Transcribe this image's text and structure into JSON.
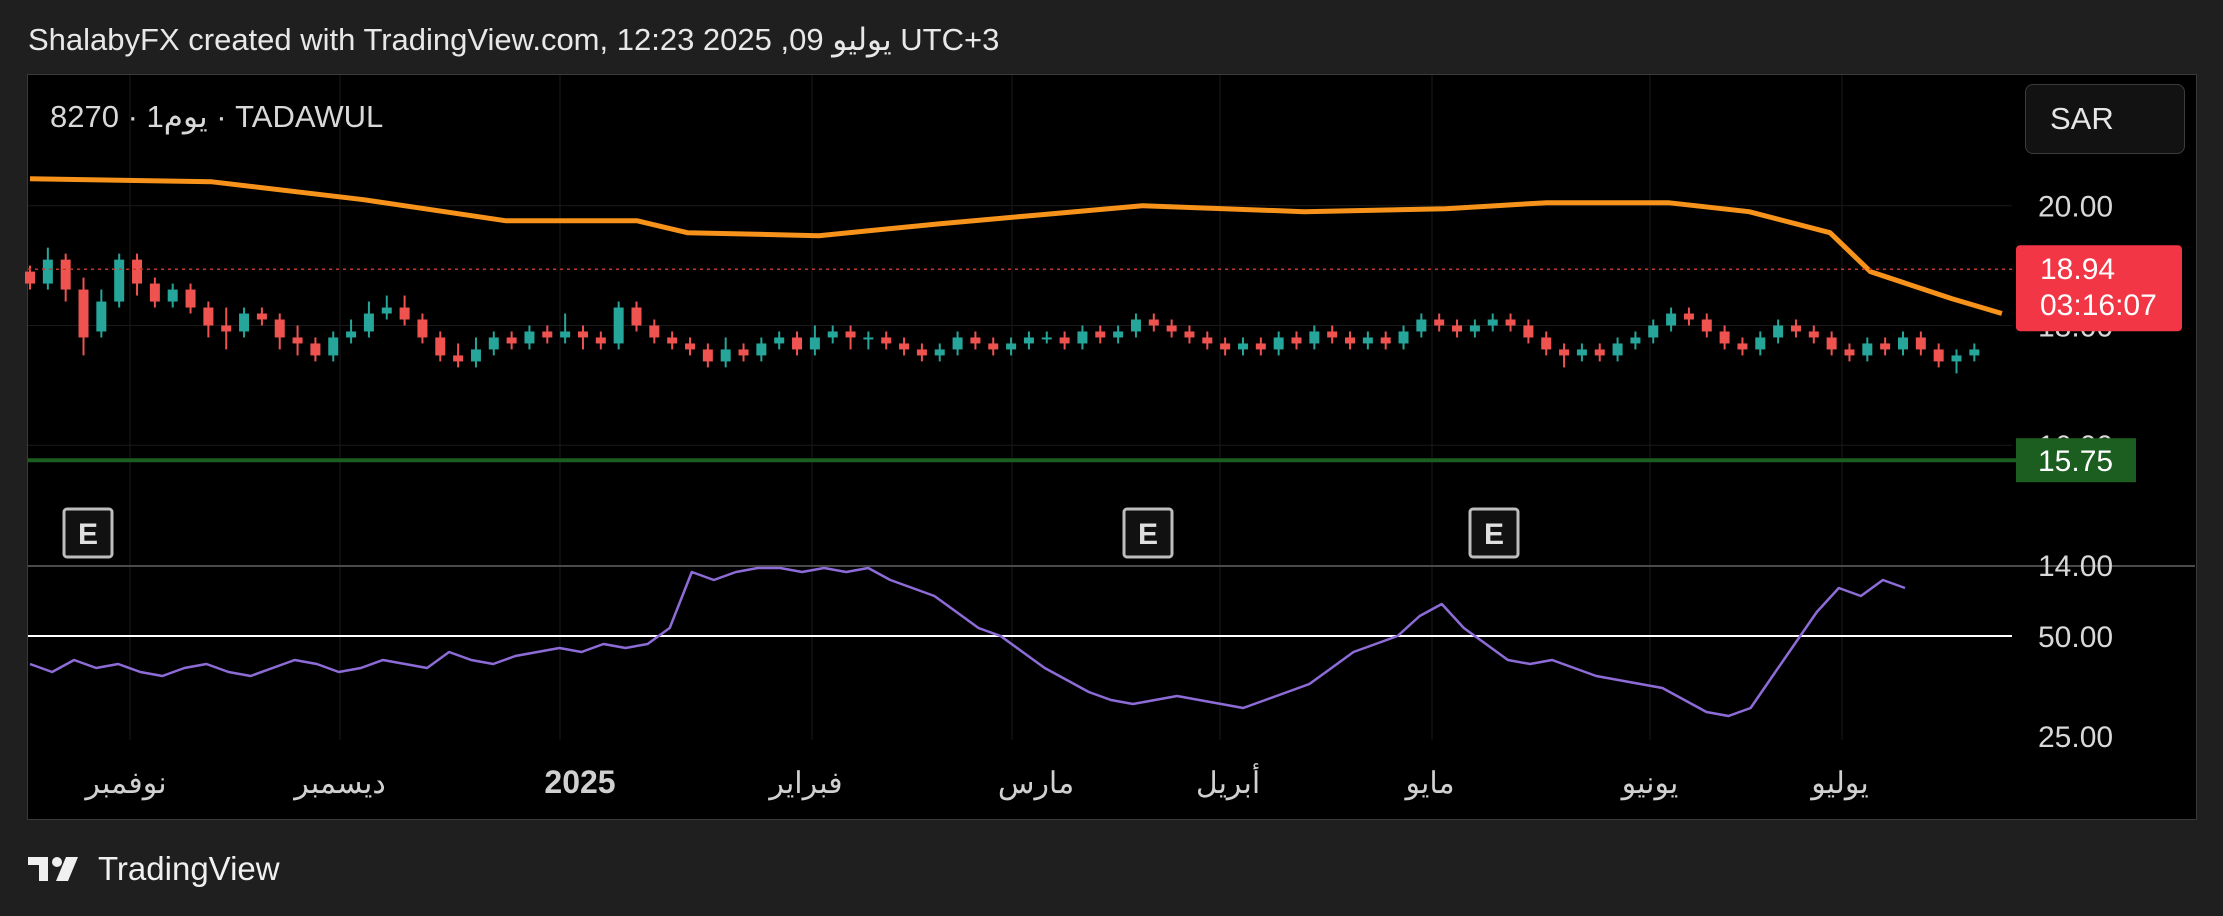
{
  "header": {
    "caption": "ShalabyFX created with TradingView.com, 12:23 2025 ,09 يوليو UTC+3"
  },
  "symbol": {
    "line": "8270 · 1يوم · TADAWUL"
  },
  "currency_button": {
    "label": "SAR"
  },
  "footer": {
    "brand": "TradingView"
  },
  "chart_data": [
    {
      "type": "candlestick",
      "title": "8270 · 1يوم · TADAWUL",
      "currency": "SAR",
      "ylim": [
        14.0,
        22.2
      ],
      "y_tick_labels": [
        "20.00",
        "18.00",
        "16.00",
        "14.00"
      ],
      "x_tick_labels": [
        "نوفمبر",
        "ديسمبر",
        "2025",
        "فبراير",
        "مارس",
        "أبريل",
        "مايو",
        "يونيو",
        "يوليو"
      ],
      "last_price": {
        "value": "18.94",
        "countdown": "03:16:07",
        "color": "#f23645"
      },
      "horizontal_line": {
        "value": "15.75",
        "color": "#1b5e20"
      },
      "moving_average": {
        "color": "#f7931a",
        "points": [
          [
            0,
            20.45
          ],
          [
            180,
            20.4
          ],
          [
            330,
            20.1
          ],
          [
            470,
            19.75
          ],
          [
            600,
            19.75
          ],
          [
            650,
            19.55
          ],
          [
            780,
            19.5
          ],
          [
            900,
            19.7
          ],
          [
            1000,
            19.85
          ],
          [
            1100,
            20.0
          ],
          [
            1260,
            19.9
          ],
          [
            1400,
            19.95
          ],
          [
            1500,
            20.05
          ],
          [
            1620,
            20.05
          ],
          [
            1700,
            19.9
          ],
          [
            1780,
            19.55
          ],
          [
            1820,
            18.9
          ],
          [
            1900,
            18.45
          ],
          [
            1950,
            18.2
          ]
        ]
      },
      "candles": [
        [
          0,
          18.9,
          18.7,
          19.0,
          18.6
        ],
        [
          12,
          18.7,
          19.1,
          19.3,
          18.6
        ],
        [
          24,
          19.1,
          18.6,
          19.2,
          18.4
        ],
        [
          36,
          18.6,
          17.8,
          18.8,
          17.5
        ],
        [
          48,
          17.9,
          18.4,
          18.6,
          17.8
        ],
        [
          60,
          18.4,
          19.1,
          19.2,
          18.3
        ],
        [
          72,
          19.1,
          18.7,
          19.2,
          18.5
        ],
        [
          84,
          18.7,
          18.4,
          18.8,
          18.3
        ],
        [
          96,
          18.4,
          18.6,
          18.7,
          18.3
        ],
        [
          108,
          18.6,
          18.3,
          18.7,
          18.2
        ],
        [
          120,
          18.3,
          18.0,
          18.4,
          17.8
        ],
        [
          132,
          18.0,
          17.9,
          18.3,
          17.6
        ],
        [
          144,
          17.9,
          18.2,
          18.3,
          17.8
        ],
        [
          156,
          18.2,
          18.1,
          18.3,
          18.0
        ],
        [
          168,
          18.1,
          17.8,
          18.2,
          17.6
        ],
        [
          180,
          17.8,
          17.7,
          18.0,
          17.5
        ],
        [
          192,
          17.7,
          17.5,
          17.8,
          17.4
        ],
        [
          204,
          17.5,
          17.8,
          17.9,
          17.4
        ],
        [
          216,
          17.8,
          17.9,
          18.1,
          17.7
        ],
        [
          228,
          17.9,
          18.2,
          18.4,
          17.8
        ],
        [
          240,
          18.2,
          18.3,
          18.5,
          18.1
        ],
        [
          252,
          18.3,
          18.1,
          18.5,
          18.0
        ],
        [
          264,
          18.1,
          17.8,
          18.2,
          17.7
        ],
        [
          276,
          17.8,
          17.5,
          17.9,
          17.4
        ],
        [
          288,
          17.5,
          17.4,
          17.7,
          17.3
        ],
        [
          300,
          17.4,
          17.6,
          17.8,
          17.3
        ],
        [
          312,
          17.6,
          17.8,
          17.9,
          17.5
        ],
        [
          324,
          17.8,
          17.7,
          17.9,
          17.6
        ],
        [
          336,
          17.7,
          17.9,
          18.0,
          17.6
        ],
        [
          348,
          17.9,
          17.8,
          18.0,
          17.7
        ],
        [
          360,
          17.8,
          17.9,
          18.2,
          17.7
        ],
        [
          372,
          17.9,
          17.8,
          18.0,
          17.6
        ],
        [
          384,
          17.8,
          17.7,
          17.9,
          17.6
        ],
        [
          396,
          17.7,
          18.3,
          18.4,
          17.6
        ],
        [
          408,
          18.3,
          18.0,
          18.4,
          17.9
        ],
        [
          420,
          18.0,
          17.8,
          18.1,
          17.7
        ],
        [
          432,
          17.8,
          17.7,
          17.9,
          17.6
        ],
        [
          444,
          17.7,
          17.6,
          17.8,
          17.5
        ],
        [
          456,
          17.6,
          17.4,
          17.7,
          17.3
        ],
        [
          468,
          17.4,
          17.6,
          17.8,
          17.3
        ],
        [
          480,
          17.6,
          17.5,
          17.7,
          17.4
        ],
        [
          492,
          17.5,
          17.7,
          17.8,
          17.4
        ],
        [
          504,
          17.7,
          17.8,
          17.9,
          17.6
        ],
        [
          516,
          17.8,
          17.6,
          17.9,
          17.5
        ],
        [
          528,
          17.6,
          17.8,
          18.0,
          17.5
        ],
        [
          540,
          17.8,
          17.9,
          18.0,
          17.7
        ],
        [
          552,
          17.9,
          17.8,
          18.0,
          17.6
        ],
        [
          564,
          17.8,
          17.8,
          17.9,
          17.6
        ],
        [
          576,
          17.8,
          17.7,
          17.9,
          17.6
        ],
        [
          588,
          17.7,
          17.6,
          17.8,
          17.5
        ],
        [
          600,
          17.6,
          17.5,
          17.7,
          17.4
        ],
        [
          612,
          17.5,
          17.6,
          17.7,
          17.4
        ],
        [
          624,
          17.6,
          17.8,
          17.9,
          17.5
        ],
        [
          636,
          17.8,
          17.7,
          17.9,
          17.6
        ],
        [
          648,
          17.7,
          17.6,
          17.8,
          17.5
        ],
        [
          660,
          17.6,
          17.7,
          17.8,
          17.5
        ],
        [
          672,
          17.7,
          17.8,
          17.9,
          17.6
        ],
        [
          684,
          17.8,
          17.8,
          17.9,
          17.7
        ],
        [
          696,
          17.8,
          17.7,
          17.9,
          17.6
        ],
        [
          708,
          17.7,
          17.9,
          18.0,
          17.6
        ],
        [
          720,
          17.9,
          17.8,
          18.0,
          17.7
        ],
        [
          732,
          17.8,
          17.9,
          18.0,
          17.7
        ],
        [
          744,
          17.9,
          18.1,
          18.2,
          17.8
        ],
        [
          756,
          18.1,
          18.0,
          18.2,
          17.9
        ],
        [
          768,
          18.0,
          17.9,
          18.1,
          17.8
        ],
        [
          780,
          17.9,
          17.8,
          18.0,
          17.7
        ],
        [
          792,
          17.8,
          17.7,
          17.9,
          17.6
        ],
        [
          804,
          17.7,
          17.6,
          17.8,
          17.5
        ],
        [
          816,
          17.6,
          17.7,
          17.8,
          17.5
        ],
        [
          828,
          17.7,
          17.6,
          17.8,
          17.5
        ],
        [
          840,
          17.6,
          17.8,
          17.9,
          17.5
        ],
        [
          852,
          17.8,
          17.7,
          17.9,
          17.6
        ],
        [
          864,
          17.7,
          17.9,
          18.0,
          17.6
        ],
        [
          876,
          17.9,
          17.8,
          18.0,
          17.7
        ],
        [
          888,
          17.8,
          17.7,
          17.9,
          17.6
        ],
        [
          900,
          17.7,
          17.8,
          17.9,
          17.6
        ],
        [
          912,
          17.8,
          17.7,
          17.9,
          17.6
        ],
        [
          924,
          17.7,
          17.9,
          18.0,
          17.6
        ],
        [
          936,
          17.9,
          18.1,
          18.2,
          17.8
        ],
        [
          948,
          18.1,
          18.0,
          18.2,
          17.9
        ],
        [
          960,
          18.0,
          17.9,
          18.1,
          17.8
        ],
        [
          972,
          17.9,
          18.0,
          18.1,
          17.8
        ],
        [
          984,
          18.0,
          18.1,
          18.2,
          17.9
        ],
        [
          996,
          18.1,
          18.0,
          18.2,
          17.9
        ],
        [
          1008,
          18.0,
          17.8,
          18.1,
          17.7
        ],
        [
          1020,
          17.8,
          17.6,
          17.9,
          17.5
        ],
        [
          1032,
          17.6,
          17.5,
          17.7,
          17.3
        ],
        [
          1044,
          17.5,
          17.6,
          17.7,
          17.4
        ],
        [
          1056,
          17.6,
          17.5,
          17.7,
          17.4
        ],
        [
          1068,
          17.5,
          17.7,
          17.8,
          17.4
        ],
        [
          1080,
          17.7,
          17.8,
          17.9,
          17.6
        ],
        [
          1092,
          17.8,
          18.0,
          18.1,
          17.7
        ],
        [
          1104,
          18.0,
          18.2,
          18.3,
          17.9
        ],
        [
          1116,
          18.2,
          18.1,
          18.3,
          18.0
        ],
        [
          1128,
          18.1,
          17.9,
          18.2,
          17.8
        ],
        [
          1140,
          17.9,
          17.7,
          18.0,
          17.6
        ],
        [
          1152,
          17.7,
          17.6,
          17.8,
          17.5
        ],
        [
          1164,
          17.6,
          17.8,
          17.9,
          17.5
        ],
        [
          1176,
          17.8,
          18.0,
          18.1,
          17.7
        ],
        [
          1188,
          18.0,
          17.9,
          18.1,
          17.8
        ],
        [
          1200,
          17.9,
          17.8,
          18.0,
          17.7
        ],
        [
          1212,
          17.8,
          17.6,
          17.9,
          17.5
        ],
        [
          1224,
          17.6,
          17.5,
          17.7,
          17.4
        ],
        [
          1236,
          17.5,
          17.7,
          17.8,
          17.4
        ],
        [
          1248,
          17.7,
          17.6,
          17.8,
          17.5
        ],
        [
          1260,
          17.6,
          17.8,
          17.9,
          17.5
        ],
        [
          1272,
          17.8,
          17.6,
          17.9,
          17.5
        ],
        [
          1284,
          17.6,
          17.4,
          17.7,
          17.3
        ],
        [
          1296,
          17.4,
          17.5,
          17.6,
          17.2
        ],
        [
          1308,
          17.5,
          17.6,
          17.7,
          17.4
        ]
      ]
    },
    {
      "type": "line",
      "indicator": "oscillator",
      "ylim": [
        24,
        67
      ],
      "y_tick_labels": [
        "50.00",
        "25.00"
      ],
      "reference_line": 50,
      "color": "#8e6cd8",
      "points": [
        [
          0,
          43
        ],
        [
          20,
          41
        ],
        [
          40,
          44
        ],
        [
          60,
          42
        ],
        [
          80,
          43
        ],
        [
          100,
          41
        ],
        [
          120,
          40
        ],
        [
          140,
          42
        ],
        [
          160,
          43
        ],
        [
          180,
          41
        ],
        [
          200,
          40
        ],
        [
          220,
          42
        ],
        [
          240,
          44
        ],
        [
          260,
          43
        ],
        [
          280,
          41
        ],
        [
          300,
          42
        ],
        [
          320,
          44
        ],
        [
          340,
          43
        ],
        [
          360,
          42
        ],
        [
          380,
          46
        ],
        [
          400,
          44
        ],
        [
          420,
          43
        ],
        [
          440,
          45
        ],
        [
          460,
          46
        ],
        [
          480,
          47
        ],
        [
          500,
          46
        ],
        [
          520,
          48
        ],
        [
          540,
          47
        ],
        [
          560,
          48
        ],
        [
          580,
          52
        ],
        [
          600,
          66
        ],
        [
          620,
          64
        ],
        [
          640,
          66
        ],
        [
          660,
          67
        ],
        [
          680,
          67
        ],
        [
          700,
          66
        ],
        [
          720,
          67
        ],
        [
          740,
          66
        ],
        [
          760,
          67
        ],
        [
          780,
          64
        ],
        [
          800,
          62
        ],
        [
          820,
          60
        ],
        [
          840,
          56
        ],
        [
          860,
          52
        ],
        [
          880,
          50
        ],
        [
          900,
          46
        ],
        [
          920,
          42
        ],
        [
          940,
          39
        ],
        [
          960,
          36
        ],
        [
          980,
          34
        ],
        [
          1000,
          33
        ],
        [
          1020,
          34
        ],
        [
          1040,
          35
        ],
        [
          1060,
          34
        ],
        [
          1080,
          33
        ],
        [
          1100,
          32
        ],
        [
          1120,
          34
        ],
        [
          1140,
          36
        ],
        [
          1160,
          38
        ],
        [
          1180,
          42
        ],
        [
          1200,
          46
        ],
        [
          1220,
          48
        ],
        [
          1240,
          50
        ],
        [
          1260,
          55
        ],
        [
          1280,
          58
        ],
        [
          1300,
          52
        ],
        [
          1320,
          48
        ],
        [
          1340,
          44
        ],
        [
          1360,
          43
        ],
        [
          1380,
          44
        ],
        [
          1400,
          42
        ],
        [
          1420,
          40
        ],
        [
          1440,
          39
        ],
        [
          1460,
          38
        ],
        [
          1480,
          37
        ],
        [
          1500,
          34
        ],
        [
          1520,
          31
        ],
        [
          1540,
          30
        ],
        [
          1560,
          32
        ],
        [
          1580,
          40
        ],
        [
          1600,
          48
        ],
        [
          1620,
          56
        ],
        [
          1640,
          62
        ],
        [
          1660,
          60
        ],
        [
          1680,
          64
        ],
        [
          1700,
          62
        ]
      ]
    }
  ],
  "earnings_markers": [
    {
      "label": "E",
      "at": 60
    },
    {
      "label": "E",
      "at": 1135
    },
    {
      "label": "E",
      "at": 1480
    }
  ],
  "colors": {
    "up": "#26a69a",
    "down": "#ef5350",
    "ma": "#f7931a",
    "background": "#000000"
  }
}
